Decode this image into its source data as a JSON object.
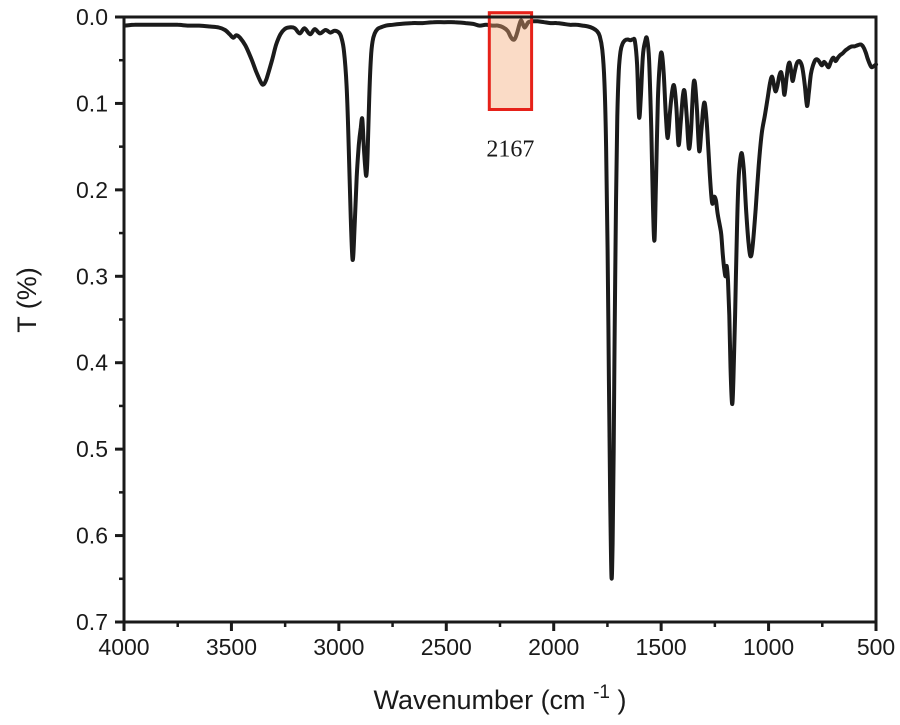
{
  "page": {
    "background": "#ffffff"
  },
  "chart_data": {
    "type": "line",
    "title": "",
    "xlabel": "Wavenumber (cm-1)",
    "xlabel_parts": [
      "Wavenumber (cm",
      "-1",
      ")"
    ],
    "ylabel": "T (%)",
    "grid": false,
    "legend": "none",
    "x_axis": {
      "min": 500,
      "max": 4000,
      "reversed": true,
      "major_ticks": [
        "4000",
        "3500",
        "3000",
        "2500",
        "2000",
        "1500",
        "1000",
        "500"
      ],
      "minor_ticks": [
        3750,
        3250,
        2750,
        2250,
        1750,
        1250,
        750
      ]
    },
    "y_axis": {
      "min": 0.0,
      "max": 0.7,
      "increasing_downward": true,
      "major_ticks": [
        "0.0",
        "0.1",
        "0.2",
        "0.3",
        "0.4",
        "0.5",
        "0.6",
        "0.7"
      ],
      "minor_ticks": [
        0.05,
        0.15,
        0.25,
        0.35,
        0.45,
        0.55,
        0.65
      ]
    },
    "colors": {
      "curve": "#1b1b1b",
      "axis": "#1a1a1a",
      "annotation_border": "#e62119",
      "annotation_fill": "rgba(244,170,120,0.42)"
    },
    "annotation": {
      "label": "2167",
      "box_w_max": 2300,
      "box_w_min": 2103,
      "box_t_top": -0.005,
      "box_t_bottom": 0.107,
      "label_t": 0.152
    },
    "series": [
      {
        "name": "transmittance-spectrum",
        "points": [
          [
            3996,
            0.01
          ],
          [
            3950,
            0.009
          ],
          [
            3900,
            0.009
          ],
          [
            3850,
            0.009
          ],
          [
            3800,
            0.009
          ],
          [
            3750,
            0.009
          ],
          [
            3700,
            0.01
          ],
          [
            3650,
            0.01
          ],
          [
            3600,
            0.011
          ],
          [
            3560,
            0.012
          ],
          [
            3530,
            0.015
          ],
          [
            3508,
            0.02
          ],
          [
            3492,
            0.024
          ],
          [
            3477,
            0.021
          ],
          [
            3460,
            0.024
          ],
          [
            3435,
            0.033
          ],
          [
            3408,
            0.048
          ],
          [
            3385,
            0.063
          ],
          [
            3362,
            0.076
          ],
          [
            3350,
            0.078
          ],
          [
            3336,
            0.071
          ],
          [
            3312,
            0.051
          ],
          [
            3292,
            0.032
          ],
          [
            3272,
            0.02
          ],
          [
            3252,
            0.014
          ],
          [
            3230,
            0.012
          ],
          [
            3205,
            0.013
          ],
          [
            3182,
            0.019
          ],
          [
            3160,
            0.013
          ],
          [
            3134,
            0.02
          ],
          [
            3112,
            0.014
          ],
          [
            3088,
            0.019
          ],
          [
            3062,
            0.015
          ],
          [
            3040,
            0.018
          ],
          [
            3020,
            0.016
          ],
          [
            3000,
            0.018
          ],
          [
            2988,
            0.024
          ],
          [
            2976,
            0.04
          ],
          [
            2964,
            0.08
          ],
          [
            2954,
            0.15
          ],
          [
            2945,
            0.23
          ],
          [
            2936,
            0.281
          ],
          [
            2927,
            0.245
          ],
          [
            2917,
            0.185
          ],
          [
            2907,
            0.148
          ],
          [
            2898,
            0.128
          ],
          [
            2891,
            0.118
          ],
          [
            2884,
            0.15
          ],
          [
            2877,
            0.175
          ],
          [
            2872,
            0.183
          ],
          [
            2866,
            0.158
          ],
          [
            2859,
            0.095
          ],
          [
            2851,
            0.048
          ],
          [
            2843,
            0.028
          ],
          [
            2833,
            0.019
          ],
          [
            2820,
            0.014
          ],
          [
            2805,
            0.012
          ],
          [
            2780,
            0.01
          ],
          [
            2750,
            0.009
          ],
          [
            2710,
            0.008
          ],
          [
            2660,
            0.007
          ],
          [
            2610,
            0.007
          ],
          [
            2560,
            0.006
          ],
          [
            2510,
            0.006
          ],
          [
            2460,
            0.006
          ],
          [
            2410,
            0.007
          ],
          [
            2375,
            0.008
          ],
          [
            2345,
            0.01
          ],
          [
            2315,
            0.009
          ],
          [
            2285,
            0.01
          ],
          [
            2260,
            0.01
          ],
          [
            2235,
            0.012
          ],
          [
            2215,
            0.016
          ],
          [
            2200,
            0.023
          ],
          [
            2190,
            0.026
          ],
          [
            2180,
            0.025
          ],
          [
            2170,
            0.018
          ],
          [
            2160,
            0.009
          ],
          [
            2152,
            0.004
          ],
          [
            2144,
            0.008
          ],
          [
            2136,
            0.012
          ],
          [
            2128,
            0.01
          ],
          [
            2118,
            0.006
          ],
          [
            2100,
            0.005
          ],
          [
            2075,
            0.005
          ],
          [
            2045,
            0.006
          ],
          [
            2015,
            0.007
          ],
          [
            1985,
            0.007
          ],
          [
            1955,
            0.008
          ],
          [
            1925,
            0.009
          ],
          [
            1895,
            0.009
          ],
          [
            1865,
            0.01
          ],
          [
            1840,
            0.011
          ],
          [
            1818,
            0.013
          ],
          [
            1800,
            0.016
          ],
          [
            1786,
            0.022
          ],
          [
            1774,
            0.038
          ],
          [
            1764,
            0.075
          ],
          [
            1756,
            0.15
          ],
          [
            1749,
            0.27
          ],
          [
            1743,
            0.42
          ],
          [
            1737,
            0.56
          ],
          [
            1731,
            0.648
          ],
          [
            1726,
            0.61
          ],
          [
            1721,
            0.5
          ],
          [
            1716,
            0.36
          ],
          [
            1710,
            0.215
          ],
          [
            1704,
            0.115
          ],
          [
            1697,
            0.062
          ],
          [
            1689,
            0.04
          ],
          [
            1680,
            0.031
          ],
          [
            1668,
            0.027
          ],
          [
            1655,
            0.026
          ],
          [
            1643,
            0.027
          ],
          [
            1632,
            0.026
          ],
          [
            1622,
            0.028
          ],
          [
            1612,
            0.055
          ],
          [
            1603,
            0.115
          ],
          [
            1595,
            0.095
          ],
          [
            1585,
            0.045
          ],
          [
            1574,
            0.028
          ],
          [
            1566,
            0.025
          ],
          [
            1556,
            0.05
          ],
          [
            1546,
            0.13
          ],
          [
            1538,
            0.22
          ],
          [
            1531,
            0.258
          ],
          [
            1524,
            0.19
          ],
          [
            1515,
            0.095
          ],
          [
            1505,
            0.05
          ],
          [
            1497,
            0.042
          ],
          [
            1488,
            0.065
          ],
          [
            1478,
            0.115
          ],
          [
            1469,
            0.14
          ],
          [
            1459,
            0.11
          ],
          [
            1448,
            0.085
          ],
          [
            1439,
            0.08
          ],
          [
            1429,
            0.105
          ],
          [
            1419,
            0.148
          ],
          [
            1409,
            0.122
          ],
          [
            1399,
            0.092
          ],
          [
            1391,
            0.086
          ],
          [
            1381,
            0.115
          ],
          [
            1371,
            0.152
          ],
          [
            1361,
            0.132
          ],
          [
            1351,
            0.082
          ],
          [
            1343,
            0.076
          ],
          [
            1333,
            0.108
          ],
          [
            1323,
            0.155
          ],
          [
            1313,
            0.132
          ],
          [
            1305,
            0.108
          ],
          [
            1297,
            0.1
          ],
          [
            1286,
            0.128
          ],
          [
            1274,
            0.18
          ],
          [
            1263,
            0.215
          ],
          [
            1254,
            0.208
          ],
          [
            1245,
            0.212
          ],
          [
            1237,
            0.228
          ],
          [
            1228,
            0.24
          ],
          [
            1220,
            0.252
          ],
          [
            1213,
            0.275
          ],
          [
            1206,
            0.292
          ],
          [
            1200,
            0.3
          ],
          [
            1195,
            0.288
          ],
          [
            1189,
            0.305
          ],
          [
            1183,
            0.345
          ],
          [
            1177,
            0.405
          ],
          [
            1172,
            0.44
          ],
          [
            1168,
            0.446
          ],
          [
            1163,
            0.415
          ],
          [
            1156,
            0.345
          ],
          [
            1148,
            0.255
          ],
          [
            1140,
            0.19
          ],
          [
            1132,
            0.165
          ],
          [
            1124,
            0.158
          ],
          [
            1115,
            0.178
          ],
          [
            1104,
            0.225
          ],
          [
            1093,
            0.262
          ],
          [
            1083,
            0.277
          ],
          [
            1073,
            0.262
          ],
          [
            1060,
            0.222
          ],
          [
            1046,
            0.172
          ],
          [
            1032,
            0.135
          ],
          [
            1018,
            0.115
          ],
          [
            1005,
            0.095
          ],
          [
            993,
            0.076
          ],
          [
            984,
            0.069
          ],
          [
            976,
            0.077
          ],
          [
            968,
            0.086
          ],
          [
            959,
            0.08
          ],
          [
            950,
            0.068
          ],
          [
            941,
            0.064
          ],
          [
            933,
            0.076
          ],
          [
            926,
            0.09
          ],
          [
            917,
            0.072
          ],
          [
            909,
            0.057
          ],
          [
            902,
            0.053
          ],
          [
            895,
            0.062
          ],
          [
            888,
            0.074
          ],
          [
            879,
            0.064
          ],
          [
            869,
            0.054
          ],
          [
            860,
            0.051
          ],
          [
            850,
            0.053
          ],
          [
            841,
            0.061
          ],
          [
            831,
            0.08
          ],
          [
            821,
            0.103
          ],
          [
            812,
            0.086
          ],
          [
            803,
            0.066
          ],
          [
            793,
            0.056
          ],
          [
            783,
            0.05
          ],
          [
            773,
            0.049
          ],
          [
            763,
            0.052
          ],
          [
            752,
            0.056
          ],
          [
            742,
            0.052
          ],
          [
            731,
            0.055
          ],
          [
            720,
            0.058
          ],
          [
            709,
            0.051
          ],
          [
            698,
            0.047
          ],
          [
            688,
            0.051
          ],
          [
            677,
            0.047
          ],
          [
            666,
            0.044
          ],
          [
            655,
            0.042
          ],
          [
            644,
            0.039
          ],
          [
            633,
            0.037
          ],
          [
            622,
            0.035
          ],
          [
            611,
            0.034
          ],
          [
            600,
            0.034
          ],
          [
            589,
            0.033
          ],
          [
            578,
            0.032
          ],
          [
            568,
            0.032
          ],
          [
            558,
            0.035
          ],
          [
            548,
            0.041
          ],
          [
            539,
            0.048
          ],
          [
            530,
            0.054
          ],
          [
            521,
            0.058
          ],
          [
            511,
            0.057
          ],
          [
            500,
            0.055
          ]
        ]
      }
    ]
  }
}
